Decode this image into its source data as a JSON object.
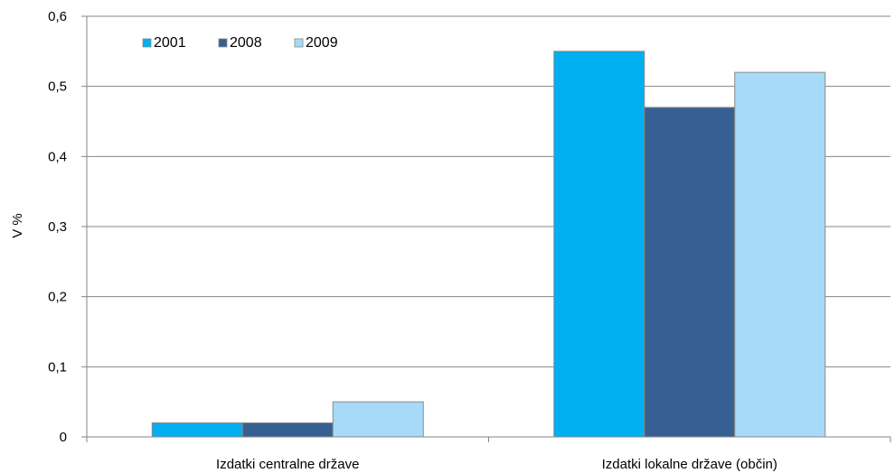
{
  "chart_data": {
    "type": "bar",
    "categories": [
      "Izdatki centralne države",
      "Izdatki lokalne države (občin)"
    ],
    "series": [
      {
        "name": "2001",
        "values": [
          0.02,
          0.55
        ],
        "color": "#00B0F0"
      },
      {
        "name": "2008",
        "values": [
          0.02,
          0.47
        ],
        "color": "#376092"
      },
      {
        "name": "2009",
        "values": [
          0.05,
          0.52
        ],
        "color": "#A6DAF8"
      }
    ],
    "ylabel": "V %",
    "ylim": [
      0,
      0.6
    ],
    "yticks": [
      "0",
      "0,1",
      "0,2",
      "0,3",
      "0,4",
      "0,5",
      "0,6"
    ],
    "grid": true,
    "legend_position": "top-left"
  }
}
